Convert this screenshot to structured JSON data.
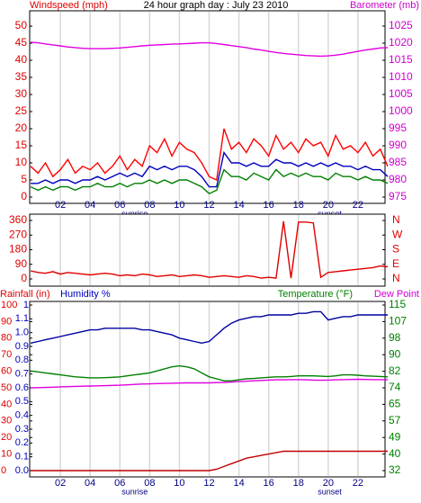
{
  "chart_data": [
    {
      "type": "line",
      "title": "24 hour graph day : July 23 2010",
      "ylabel": "Windspeed (mph)",
      "ylabel_color": "#e00000",
      "y2label": "Barometer (mb)",
      "y2label_color": "#d000d0",
      "x": [
        0,
        0.5,
        1,
        1.5,
        2,
        2.5,
        3,
        3.5,
        4,
        4.5,
        5,
        5.5,
        6,
        6.5,
        7,
        7.5,
        8,
        8.5,
        9,
        9.5,
        10,
        10.5,
        11,
        11.5,
        12,
        12.5,
        13,
        13.5,
        14,
        14.5,
        15,
        15.5,
        16,
        16.5,
        17,
        17.5,
        18,
        18.5,
        19,
        19.5,
        20,
        20.5,
        21,
        21.5,
        22,
        22.5,
        23,
        23.5,
        24
      ],
      "xlim": [
        0,
        24
      ],
      "xticks": [
        {
          "value": 2,
          "label": "02"
        },
        {
          "value": 4,
          "label": "04"
        },
        {
          "value": 6,
          "label": "06"
        },
        {
          "value": 8,
          "label": "08"
        },
        {
          "value": 10,
          "label": "10"
        },
        {
          "value": 12,
          "label": "12"
        },
        {
          "value": 14,
          "label": "14"
        },
        {
          "value": 16,
          "label": "16"
        },
        {
          "value": 18,
          "label": "18"
        },
        {
          "value": 20,
          "label": "20"
        },
        {
          "value": 22,
          "label": "22"
        }
      ],
      "x_annotations": [
        {
          "value": 7.0,
          "label": "sunrise"
        },
        {
          "value": 20.1,
          "label": "sunset"
        }
      ],
      "ylim": [
        0,
        50
      ],
      "yticks": [
        0,
        5,
        10,
        15,
        20,
        25,
        30,
        35,
        40,
        45,
        50
      ],
      "ytick_color": "#e00000",
      "y2lim": [
        975,
        1025
      ],
      "y2ticks": [
        975,
        980,
        985,
        990,
        995,
        1000,
        1005,
        1010,
        1015,
        1020,
        1025
      ],
      "y2tick_color": "#d000d0",
      "grid": true,
      "series": [
        {
          "color": "#ff0000",
          "axis": "y",
          "values": [
            9,
            7,
            10,
            6,
            8,
            11,
            7,
            9,
            8,
            10,
            7,
            9,
            12,
            8,
            11,
            9,
            15,
            13,
            17,
            12,
            16,
            14,
            13,
            10,
            6,
            5,
            20,
            14,
            16,
            13,
            17,
            15,
            12,
            18,
            14,
            16,
            13,
            17,
            15,
            16,
            12,
            18,
            14,
            15,
            13,
            16,
            12,
            14,
            9
          ]
        },
        {
          "color": "#0000c0",
          "axis": "y",
          "values": [
            4,
            4,
            5,
            4,
            5,
            5,
            4,
            5,
            5,
            6,
            5,
            6,
            7,
            6,
            7,
            6,
            9,
            8,
            9,
            8,
            9,
            9,
            8,
            6,
            3,
            3,
            13,
            10,
            10,
            9,
            10,
            9,
            9,
            11,
            10,
            10,
            9,
            10,
            9,
            10,
            9,
            10,
            9,
            9,
            8,
            9,
            8,
            8,
            6
          ]
        },
        {
          "color": "#008000",
          "axis": "y",
          "values": [
            3,
            2,
            3,
            2,
            3,
            3,
            2,
            3,
            3,
            4,
            3,
            3,
            4,
            3,
            4,
            4,
            5,
            4,
            5,
            4,
            5,
            5,
            4,
            3,
            1,
            2,
            8,
            6,
            6,
            5,
            7,
            6,
            5,
            8,
            6,
            7,
            6,
            7,
            6,
            6,
            5,
            7,
            6,
            6,
            5,
            6,
            5,
            5,
            4
          ]
        },
        {
          "color": "#e000e0",
          "axis": "y2",
          "values": [
            1020.3,
            1020.1,
            1019.8,
            1019.5,
            1019.2,
            1018.9,
            1018.7,
            1018.5,
            1018.4,
            1018.4,
            1018.4,
            1018.5,
            1018.6,
            1018.8,
            1019,
            1019.2,
            1019.4,
            1019.5,
            1019.6,
            1019.7,
            1019.8,
            1019.9,
            1020,
            1020.1,
            1020.1,
            1019.9,
            1019.6,
            1019.3,
            1019,
            1018.7,
            1018.3,
            1018,
            1017.6,
            1017.3,
            1017,
            1016.8,
            1016.6,
            1016.4,
            1016.3,
            1016.2,
            1016.3,
            1016.5,
            1016.8,
            1017.2,
            1017.6,
            1018,
            1018.3,
            1018.6,
            1018.7
          ]
        }
      ]
    },
    {
      "type": "line",
      "x": [
        0,
        0.5,
        1,
        1.5,
        2,
        2.5,
        3,
        3.5,
        4,
        4.5,
        5,
        5.5,
        6,
        6.5,
        7,
        7.5,
        8,
        8.5,
        9,
        9.5,
        10,
        10.5,
        11,
        11.5,
        12,
        12.5,
        13,
        13.5,
        14,
        14.5,
        15,
        15.5,
        16,
        16.5,
        17,
        17.5,
        18,
        18.5,
        19,
        19.5,
        20,
        20.5,
        21,
        21.5,
        22,
        22.5,
        23,
        23.5,
        24
      ],
      "xlim": [
        0,
        24
      ],
      "xticks": [
        2,
        4,
        6,
        8,
        10,
        12,
        14,
        16,
        18,
        20,
        22
      ],
      "ylim": [
        0,
        360
      ],
      "yticks": [
        0,
        90,
        180,
        270,
        360
      ],
      "ytick_color": "#e00000",
      "y2lim": [
        0,
        360
      ],
      "y2ticks": [
        {
          "value": 0,
          "label": "N"
        },
        {
          "value": 90,
          "label": "E"
        },
        {
          "value": 180,
          "label": "S"
        },
        {
          "value": 270,
          "label": "W"
        },
        {
          "value": 360,
          "label": "N"
        }
      ],
      "y2tick_color": "#e00000",
      "grid": true,
      "series": [
        {
          "color": "#e00000",
          "axis": "y",
          "values": [
            50,
            40,
            35,
            45,
            30,
            40,
            35,
            30,
            25,
            30,
            35,
            30,
            20,
            25,
            20,
            30,
            25,
            15,
            20,
            25,
            15,
            20,
            25,
            20,
            10,
            15,
            20,
            15,
            10,
            20,
            15,
            5,
            10,
            5,
            355,
            5,
            350,
            350,
            345,
            10,
            40,
            45,
            50,
            55,
            60,
            65,
            70,
            80,
            75
          ]
        }
      ]
    },
    {
      "type": "line",
      "header": [
        {
          "text": "Rainfall (in)",
          "color": "#e00000"
        },
        {
          "text": "Humidity %",
          "color": "#0000c0"
        },
        {
          "text": "Temperature (°F)",
          "color": "#008000"
        },
        {
          "text": "Dew Point",
          "color": "#d000d0"
        }
      ],
      "x": [
        0,
        0.5,
        1,
        1.5,
        2,
        2.5,
        3,
        3.5,
        4,
        4.5,
        5,
        5.5,
        6,
        6.5,
        7,
        7.5,
        8,
        8.5,
        9,
        9.5,
        10,
        10.5,
        11,
        11.5,
        12,
        12.5,
        13,
        13.5,
        14,
        14.5,
        15,
        15.5,
        16,
        16.5,
        17,
        17.5,
        18,
        18.5,
        19,
        19.5,
        20,
        20.5,
        21,
        21.5,
        22,
        22.5,
        23,
        23.5,
        24
      ],
      "xlim": [
        0,
        24
      ],
      "xticks": [
        {
          "value": 2,
          "label": "02"
        },
        {
          "value": 4,
          "label": "04"
        },
        {
          "value": 6,
          "label": "06"
        },
        {
          "value": 8,
          "label": "08"
        },
        {
          "value": 10,
          "label": "10"
        },
        {
          "value": 12,
          "label": "12"
        },
        {
          "value": 14,
          "label": "14"
        },
        {
          "value": 16,
          "label": "16"
        },
        {
          "value": 18,
          "label": "18"
        },
        {
          "value": 20,
          "label": "20"
        },
        {
          "value": 22,
          "label": "22"
        }
      ],
      "x_annotations": [
        {
          "value": 7.0,
          "label": "sunrise"
        },
        {
          "value": 20.1,
          "label": "sunset"
        }
      ],
      "ylim": [
        0,
        100
      ],
      "yticks": [
        0,
        10,
        20,
        30,
        40,
        50,
        60,
        70,
        80,
        90,
        100
      ],
      "ytick_color": "#e00000",
      "y3lim": [
        0,
        1.2
      ],
      "y3ticks": [
        {
          "value": 0,
          "label": "0.0"
        },
        0.1,
        0.2,
        0.3,
        0.4,
        0.5,
        0.6,
        0.7,
        0.8,
        0.9,
        {
          "value": 1.0,
          "label": "1.0"
        },
        1.1,
        {
          "value": 1.2,
          "label": "1"
        }
      ],
      "y3tick_color": "#0000c0",
      "y2lim": [
        32,
        115
      ],
      "y2ticks": [
        32,
        {
          "value": 40.3,
          "label": "40"
        },
        {
          "value": 48.6,
          "label": "49"
        },
        {
          "value": 56.9,
          "label": "57"
        },
        {
          "value": 65.2,
          "label": "65"
        },
        {
          "value": 73.5,
          "label": "74"
        },
        {
          "value": 81.8,
          "label": "82"
        },
        {
          "value": 90.1,
          "label": "90"
        },
        {
          "value": 98.4,
          "label": "98"
        },
        {
          "value": 106.7,
          "label": "107"
        },
        115
      ],
      "y2tick_color": "#008000",
      "grid": true,
      "series": [
        {
          "color": "#0000a0",
          "axis": "y",
          "values": [
            77,
            78,
            79,
            80,
            81,
            82,
            83,
            84,
            85,
            85,
            86,
            86,
            86,
            86,
            86,
            85,
            85,
            84,
            83,
            82,
            80,
            79,
            78,
            77,
            78,
            82,
            86,
            89,
            91,
            92,
            93,
            93,
            94,
            94,
            94,
            94,
            95,
            95,
            96,
            96,
            91,
            92,
            93,
            93,
            94,
            94,
            94,
            94,
            94
          ]
        },
        {
          "color": "#008000",
          "axis": "y2",
          "values": [
            82,
            81.5,
            81,
            80.5,
            80,
            79.5,
            79,
            78.8,
            78.5,
            78.5,
            78.6,
            78.8,
            79,
            79.5,
            80,
            80.5,
            81,
            82,
            83,
            84,
            84.5,
            84,
            83,
            81,
            79,
            78,
            77,
            77,
            77.5,
            78,
            78.2,
            78.5,
            78.8,
            79,
            79,
            79.2,
            79.5,
            79.5,
            79.5,
            79.3,
            79.2,
            79.5,
            80,
            80,
            79.8,
            79.5,
            79.3,
            79.2,
            79
          ]
        },
        {
          "color": "#e000e0",
          "axis": "y2",
          "values": [
            73.5,
            73.6,
            73.7,
            73.8,
            74,
            74.1,
            74.2,
            74.3,
            74.4,
            74.5,
            74.6,
            74.7,
            74.8,
            75,
            75.2,
            75.4,
            75.5,
            75.6,
            75.7,
            75.8,
            75.9,
            76,
            76,
            76,
            76,
            76.1,
            76.2,
            76.4,
            76.6,
            76.8,
            77,
            77.2,
            77.4,
            77.5,
            77.5,
            77.6,
            77.6,
            77.5,
            77.4,
            77.3,
            77.4,
            77.5,
            77.6,
            77.7,
            77.8,
            77.7,
            77.6,
            77.6,
            77.6
          ]
        },
        {
          "color": "#c00000",
          "axis": "y3",
          "values": [
            0,
            0,
            0,
            0,
            0,
            0,
            0,
            0,
            0,
            0,
            0,
            0,
            0,
            0,
            0,
            0,
            0,
            0,
            0,
            0,
            0,
            0,
            0,
            0,
            0,
            0.01,
            0.03,
            0.05,
            0.07,
            0.09,
            0.1,
            0.11,
            0.12,
            0.13,
            0.14,
            0.14,
            0.14,
            0.14,
            0.14,
            0.14,
            0.14,
            0.14,
            0.14,
            0.14,
            0.14,
            0.14,
            0.14,
            0.14,
            0.14
          ]
        }
      ]
    }
  ]
}
